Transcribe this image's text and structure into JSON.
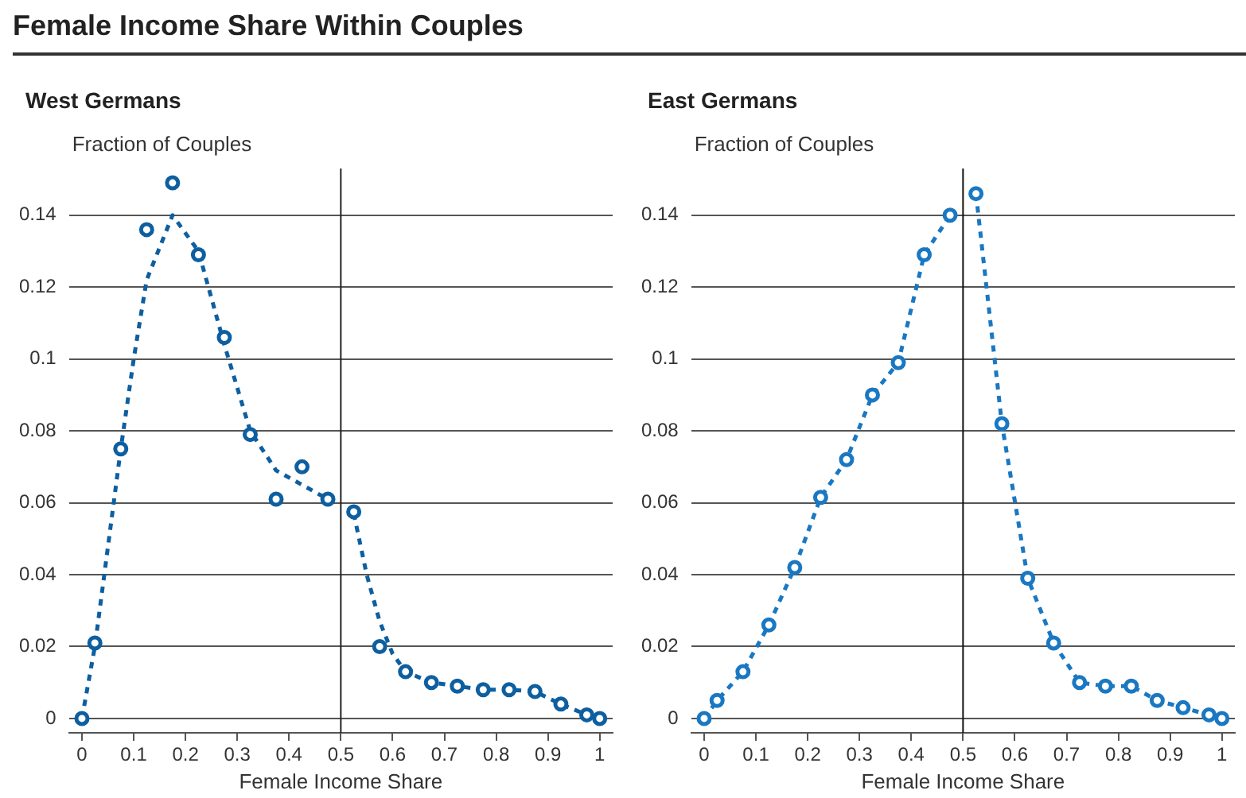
{
  "chart_data": [
    {
      "type": "scatter",
      "title": "Female Income Share Within Couples",
      "subtitle": "West Germans",
      "xlabel": "Female Income Share",
      "ylabel": "Fraction of Couples",
      "xlim": [
        -0.025,
        1.025
      ],
      "ylim": [
        -0.004,
        0.153
      ],
      "xticks": [
        0,
        0.1,
        0.2,
        0.3,
        0.4,
        0.5,
        0.6,
        0.7,
        0.8,
        0.9,
        1
      ],
      "yticks": [
        0,
        0.02,
        0.04,
        0.06,
        0.08,
        0.1,
        0.12,
        0.14
      ],
      "grid": "y",
      "legend": false,
      "ref_lines": [
        {
          "axis": "x",
          "value": 0.5,
          "color": "#222222"
        }
      ],
      "series": [
        {
          "marker": "circle",
          "color": "#0e5fa0",
          "x": [
            0,
            0.025,
            0.075,
            0.125,
            0.175,
            0.225,
            0.275,
            0.325,
            0.375,
            0.425,
            0.475,
            0.525,
            0.575,
            0.625,
            0.675,
            0.725,
            0.775,
            0.825,
            0.875,
            0.925,
            0.975,
            1
          ],
          "values": [
            0,
            0.021,
            0.075,
            0.136,
            0.149,
            0.129,
            0.106,
            0.079,
            0.061,
            0.07,
            0.061,
            0.0575,
            0.02,
            0.013,
            0.01,
            0.009,
            0.008,
            0.008,
            0.0075,
            0.004,
            0.001,
            0
          ]
        },
        {
          "type": "line",
          "line_style": "dashed",
          "color": "#0e5fa0",
          "x": [
            0,
            0.025,
            0.075,
            0.1,
            0.125,
            0.175,
            0.225,
            0.275,
            0.325,
            0.375,
            0.425,
            0.475,
            0.5,
            0.525,
            0.55,
            0.575,
            0.6,
            0.625,
            0.675,
            0.725,
            0.775,
            0.825,
            0.875,
            0.925,
            0.975,
            1
          ],
          "values": [
            0,
            0.02,
            0.075,
            0.1,
            0.122,
            0.14,
            0.13,
            0.104,
            0.08,
            0.069,
            0.065,
            0.061,
            null,
            0.057,
            0.04,
            0.027,
            0.018,
            0.013,
            0.01,
            0.009,
            0.008,
            0.008,
            0.0075,
            0.004,
            0.001,
            0
          ]
        }
      ]
    },
    {
      "type": "scatter",
      "subtitle": "East Germans",
      "xlabel": "Female Income Share",
      "ylabel": "Fraction of Couples",
      "xlim": [
        -0.025,
        1.025
      ],
      "ylim": [
        -0.004,
        0.153
      ],
      "xticks": [
        0,
        0.1,
        0.2,
        0.3,
        0.4,
        0.5,
        0.6,
        0.7,
        0.8,
        0.9,
        1
      ],
      "yticks": [
        0,
        0.02,
        0.04,
        0.06,
        0.08,
        0.1,
        0.12,
        0.14
      ],
      "grid": "y",
      "legend": false,
      "ref_lines": [
        {
          "axis": "x",
          "value": 0.5,
          "color": "#111111"
        }
      ],
      "series": [
        {
          "marker": "circle",
          "color": "#1a78c2",
          "x": [
            0,
            0.025,
            0.075,
            0.125,
            0.175,
            0.225,
            0.275,
            0.325,
            0.375,
            0.425,
            0.475,
            0.525,
            0.575,
            0.625,
            0.675,
            0.725,
            0.775,
            0.825,
            0.875,
            0.925,
            0.975,
            1
          ],
          "values": [
            0,
            0.005,
            0.013,
            0.026,
            0.042,
            0.0615,
            0.072,
            0.09,
            0.099,
            0.129,
            0.14,
            0.146,
            0.082,
            0.039,
            0.021,
            0.01,
            0.009,
            0.009,
            0.005,
            0.003,
            0.001,
            0
          ]
        },
        {
          "type": "line",
          "line_style": "dashed",
          "color": "#1a78c2",
          "x": [
            0,
            0.025,
            0.075,
            0.125,
            0.175,
            0.225,
            0.275,
            0.325,
            0.375,
            0.425,
            0.475,
            0.5,
            0.525,
            0.575,
            0.625,
            0.675,
            0.725,
            0.775,
            0.825,
            0.875,
            0.925,
            0.975,
            1
          ],
          "values": [
            0,
            0.005,
            0.013,
            0.026,
            0.042,
            0.0615,
            0.072,
            0.09,
            0.099,
            0.129,
            0.14,
            null,
            0.146,
            0.082,
            0.039,
            0.021,
            0.01,
            0.009,
            0.009,
            0.005,
            0.003,
            0.001,
            0
          ]
        }
      ]
    }
  ]
}
